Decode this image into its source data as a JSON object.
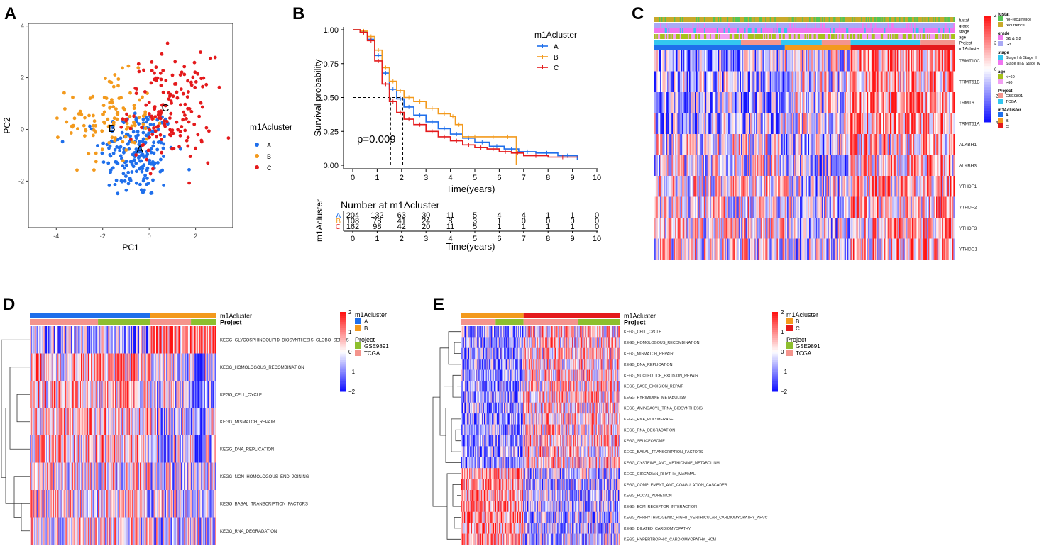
{
  "colors": {
    "A": "#1F6FEB",
    "B": "#F39A1D",
    "C": "#E41A1C",
    "GSE9891": "#8DBF2E",
    "TCGA": "#F4948C",
    "heat_low": "#1010F0",
    "heat_mid": "#FFFFFF",
    "heat_high": "#F01818",
    "no_recurrence": "#55C455",
    "recurrence": "#C8A92A",
    "G1G2": "#F07AF0",
    "G3": "#A9A9F5",
    "stage12": "#33C7F0",
    "stage34": "#F075F0",
    "age_le60": "#A6C21A",
    "age_gt60": "#F29FF2"
  },
  "chart_data": [
    {
      "panel": "A",
      "panel_label": "A",
      "type": "scatter",
      "title": "",
      "xlabel": "PC1",
      "ylabel": "PC2",
      "xlim": [
        -5.2,
        3.6
      ],
      "ylim": [
        -3.8,
        4.1
      ],
      "xticks": [
        {
          "v": -4,
          "t": "-4"
        },
        {
          "v": -2,
          "t": "-2"
        },
        {
          "v": 0,
          "t": "0"
        },
        {
          "v": 2,
          "t": "2"
        }
      ],
      "yticks": [
        {
          "v": -2,
          "t": "-2"
        },
        {
          "v": 0,
          "t": "0"
        },
        {
          "v": 2,
          "t": "2"
        },
        {
          "v": 4,
          "t": "4"
        }
      ],
      "legend_title": "m1Acluster",
      "legend": [
        "A",
        "B",
        "C"
      ],
      "series": [
        {
          "name": "A",
          "center": [
            -0.5,
            -0.9
          ],
          "sd": [
            0.8,
            0.9
          ],
          "n": 200
        },
        {
          "name": "B",
          "center": [
            -1.7,
            0.4
          ],
          "sd": [
            0.9,
            0.85
          ],
          "n": 110
        },
        {
          "name": "C",
          "center": [
            0.9,
            0.8
          ],
          "sd": [
            0.9,
            1.0
          ],
          "n": 160
        }
      ],
      "annotations": [
        {
          "text": "A",
          "x": -0.4,
          "y": -0.9
        },
        {
          "text": "B",
          "x": -1.6,
          "y": -0.1
        },
        {
          "text": "C",
          "x": 0.7,
          "y": 0.7
        }
      ]
    },
    {
      "panel": "B",
      "panel_label": "B",
      "type": "line",
      "subtype": "kaplan-meier",
      "xlabel": "Time(years)",
      "ylabel": "Survival probability",
      "xlim": [
        -0.8,
        10.4
      ],
      "ylim": [
        -0.05,
        1.05
      ],
      "xticks": [
        0,
        1,
        2,
        3,
        4,
        5,
        6,
        7,
        8,
        9,
        10
      ],
      "yticks": [
        "0.00",
        "0.25",
        "0.50",
        "0.75",
        "1.00"
      ],
      "legend_title": "m1Acluster",
      "legend": [
        "A",
        "B",
        "C"
      ],
      "pvalue": "p=0.009",
      "median_lines": [
        1.55,
        2.05
      ],
      "series": [
        {
          "name": "A",
          "x": [
            0,
            0.3,
            0.6,
            0.9,
            1.2,
            1.5,
            1.8,
            2.1,
            2.5,
            3.0,
            3.5,
            4.0,
            4.5,
            5.0,
            5.6,
            6.2,
            6.8,
            7.5,
            8.4,
            9.2
          ],
          "y": [
            1.0,
            0.985,
            0.93,
            0.81,
            0.68,
            0.56,
            0.49,
            0.43,
            0.37,
            0.32,
            0.27,
            0.23,
            0.2,
            0.17,
            0.14,
            0.12,
            0.1,
            0.09,
            0.07,
            0.04
          ]
        },
        {
          "name": "B",
          "x": [
            0,
            0.3,
            0.6,
            0.9,
            1.2,
            1.5,
            1.8,
            2.1,
            2.5,
            3.0,
            3.5,
            4.0,
            4.2,
            4.5,
            5.5,
            6.0,
            6.7
          ],
          "y": [
            1.0,
            0.99,
            0.95,
            0.85,
            0.72,
            0.62,
            0.55,
            0.5,
            0.47,
            0.42,
            0.38,
            0.36,
            0.3,
            0.21,
            0.21,
            0.21,
            0.0
          ]
        },
        {
          "name": "C",
          "x": [
            0,
            0.3,
            0.6,
            0.9,
            1.2,
            1.5,
            1.8,
            2.1,
            2.5,
            3.0,
            3.5,
            4.0,
            4.5,
            5.0,
            5.5,
            6.0,
            6.5,
            7.0,
            8.0,
            9.2
          ],
          "y": [
            1.0,
            0.98,
            0.92,
            0.77,
            0.6,
            0.47,
            0.39,
            0.34,
            0.3,
            0.25,
            0.21,
            0.18,
            0.15,
            0.13,
            0.12,
            0.1,
            0.09,
            0.07,
            0.06,
            0.065
          ]
        }
      ],
      "risk_table": {
        "title": "Number at m1Acluster",
        "ylabel": "m1Acluster",
        "xlabel": "Time(years)",
        "times": [
          0,
          1,
          2,
          3,
          4,
          5,
          6,
          7,
          8,
          9,
          10
        ],
        "rows": [
          {
            "name": "A",
            "counts": [
              "204",
              "132",
              "63",
              "30",
              "11",
              "5",
              "4",
              "4",
              "1",
              "1",
              "0"
            ]
          },
          {
            "name": "B",
            "counts": [
              "108",
              "78",
              "41",
              "24",
              "8",
              "3",
              "1",
              "0",
              "0",
              "0",
              "0"
            ]
          },
          {
            "name": "C",
            "counts": [
              "162",
              "98",
              "42",
              "20",
              "11",
              "5",
              "1",
              "1",
              "1",
              "1",
              "0"
            ]
          }
        ]
      }
    },
    {
      "panel": "C",
      "panel_label": "C",
      "type": "heatmap",
      "annotation_tracks": [
        "fustat",
        "grade",
        "stage",
        "age",
        "Project",
        "m1Acluster"
      ],
      "rows": [
        "TRMT10C",
        "TRMT61B",
        "TRMT6",
        "TRMT61A",
        "ALKBH1",
        "ALKBH3",
        "YTHDF1",
        "YTHDF2",
        "YTHDF3",
        "YTHDC1"
      ],
      "scale_ticks": [
        "4",
        "2",
        "0",
        "-2",
        "-4"
      ],
      "legend": [
        {
          "title": "fustat",
          "items": [
            {
              "label": "no−recurrence",
              "color": "#55C455"
            },
            {
              "label": "recurrence",
              "color": "#C8A92A"
            }
          ]
        },
        {
          "title": "grade",
          "items": [
            {
              "label": "G1 & G2",
              "color": "#F07AF0"
            },
            {
              "label": "G3",
              "color": "#A9A9F5"
            }
          ]
        },
        {
          "title": "stage",
          "items": [
            {
              "label": "Stage I & Stage II",
              "color": "#33C7F0"
            },
            {
              "label": "Stage III & Stage IV",
              "color": "#F075F0"
            }
          ]
        },
        {
          "title": "age",
          "items": [
            {
              "label": "<=60",
              "color": "#A6C21A"
            },
            {
              "label": ">60",
              "color": "#F29FF2"
            }
          ]
        },
        {
          "title": "Project",
          "items": [
            {
              "label": "GSE9891",
              "color": "#F4948C"
            },
            {
              "label": "TCGA",
              "color": "#33C7F0"
            }
          ]
        },
        {
          "title": "m1Acluster",
          "items": [
            {
              "label": "A",
              "color": "#1F6FEB"
            },
            {
              "label": "B",
              "color": "#F39A1D"
            },
            {
              "label": "C",
              "color": "#E41A1C"
            }
          ]
        }
      ]
    },
    {
      "panel": "D",
      "panel_label": "D",
      "type": "heatmap",
      "annotation_tracks": [
        "m1Acluster",
        "Project"
      ],
      "rows": [
        "KEGG_GLYCOSPHINGOLIPID_BIOSYNTHESIS_GLOBO_SERIES",
        "KEGG_HOMOLOGOUS_RECOMBINATION",
        "KEGG_CELL_CYCLE",
        "KEGG_MISMATCH_REPAIR",
        "KEGG_DNA_REPLICATION",
        "KEGG_NON_HOMOLOGOUS_END_JOINING",
        "KEGG_BASAL_TRANSCRIPTION_FACTORS",
        "KEGG_RNA_DEGRADATION"
      ],
      "scale_ticks": [
        "2",
        "1",
        "0",
        "−1",
        "−2"
      ],
      "legend": [
        {
          "title": "m1Acluster",
          "items": [
            {
              "label": "A",
              "color": "#1F6FEB"
            },
            {
              "label": "B",
              "color": "#F39A1D"
            }
          ]
        },
        {
          "title": "Project",
          "items": [
            {
              "label": "GSE9891",
              "color": "#8DBF2E"
            },
            {
              "label": "TCGA",
              "color": "#F4948C"
            }
          ]
        }
      ]
    },
    {
      "panel": "E",
      "panel_label": "E",
      "type": "heatmap",
      "annotation_tracks": [
        "m1Acluster",
        "Project"
      ],
      "rows": [
        "KEGG_CELL_CYCLE",
        "KEGG_HOMOLOGOUS_RECOMBINATION",
        "KEGG_MISMATCH_REPAIR",
        "KEGG_DNA_REPLICATION",
        "KEGG_NUCLEOTIDE_EXCISION_REPAIR",
        "KEGG_BASE_EXCISION_REPAIR",
        "KEGG_PYRIMIDINE_METABOLISM",
        "KEGG_AMINOACYL_TRNA_BIOSYNTHESIS",
        "KEGG_RNA_POLYMERASE",
        "KEGG_RNA_DEGRADATION",
        "KEGG_SPLICEOSOME",
        "KEGG_BASAL_TRANSCRIPTION_FACTORS",
        "KEGG_CYSTEINE_AND_METHIONINE_METABOLISM",
        "KEGG_CIRCADIAN_RHYTHM_MAMMAL",
        "KEGG_COMPLEMENT_AND_COAGULATION_CASCADES",
        "KEGG_FOCAL_ADHESION",
        "KEGG_ECM_RECEPTOR_INTERACTION",
        "KEGG_ARRHYTHMOGENIC_RIGHT_VENTRICULAR_CARDIOMYOPATHY_ARVC",
        "KEGG_DILATED_CARDIOMYOPATHY",
        "KEGG_HYPERTROPHIC_CARDIOMYOPATHY_HCM"
      ],
      "scale_ticks": [
        "2",
        "1",
        "0",
        "−1",
        "−2"
      ],
      "legend": [
        {
          "title": "m1Acluster",
          "items": [
            {
              "label": "B",
              "color": "#F39A1D"
            },
            {
              "label": "C",
              "color": "#E41A1C"
            }
          ]
        },
        {
          "title": "Project",
          "items": [
            {
              "label": "GSE9891",
              "color": "#8DBF2E"
            },
            {
              "label": "TCGA",
              "color": "#F4948C"
            }
          ]
        }
      ]
    }
  ]
}
